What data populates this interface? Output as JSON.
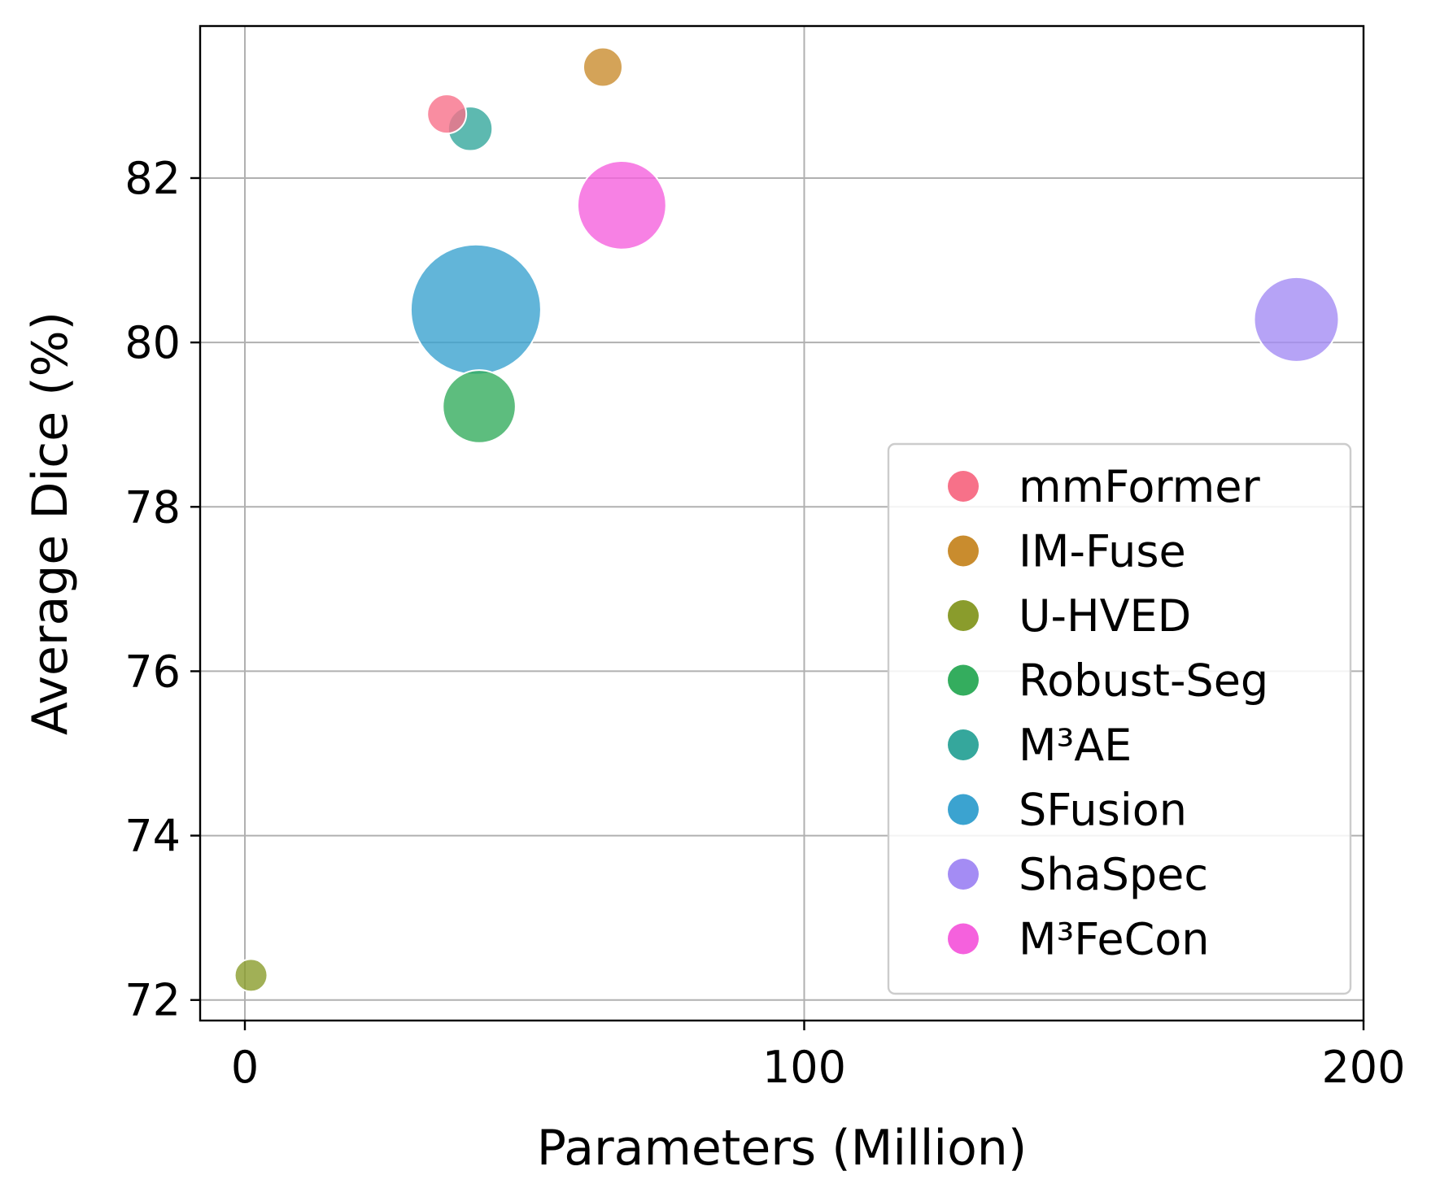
{
  "chart_data": {
    "type": "scatter",
    "xlabel": "Parameters (Million)",
    "ylabel": "Average Dice (%)",
    "xlim": [
      -8,
      200
    ],
    "ylim": [
      71.75,
      83.85
    ],
    "xticks": [
      0,
      100,
      200
    ],
    "yticks": [
      72,
      74,
      76,
      78,
      80,
      82
    ],
    "xtick_labels": [
      "0",
      "100",
      "200"
    ],
    "ytick_labels": [
      "72",
      "74",
      "76",
      "78",
      "80",
      "82"
    ],
    "grid": true,
    "legend_position": "lower-right",
    "series": [
      {
        "name": "mmFormer",
        "x": 36.1,
        "y": 82.78,
        "color": "#f77189",
        "size_rel": 0.3
      },
      {
        "name": "IM-Fuse",
        "x": 64.0,
        "y": 83.35,
        "color": "#c98c2e",
        "size_rel": 0.3
      },
      {
        "name": "U-HVED",
        "x": 1.1,
        "y": 72.3,
        "color": "#8a9c2c",
        "size_rel": 0.25
      },
      {
        "name": "Robust-Seg",
        "x": 41.9,
        "y": 79.22,
        "color": "#34ad5e",
        "size_rel": 0.56
      },
      {
        "name": "M³AE",
        "x": 40.3,
        "y": 82.6,
        "color": "#35a79c",
        "size_rel": 0.34
      },
      {
        "name": "SFusion",
        "x": 41.3,
        "y": 80.4,
        "color": "#3ba3d0",
        "size_rel": 1.0
      },
      {
        "name": "ShaSpec",
        "x": 188.0,
        "y": 80.28,
        "color": "#a48cf4",
        "size_rel": 0.65
      },
      {
        "name": "M³FeCon",
        "x": 67.4,
        "y": 81.67,
        "color": "#f561dd",
        "size_rel": 0.68
      }
    ],
    "draw_order": [
      "SFusion",
      "ShaSpec",
      "M³FeCon",
      "Robust-Seg",
      "M³AE",
      "mmFormer",
      "IM-Fuse",
      "U-HVED"
    ]
  }
}
